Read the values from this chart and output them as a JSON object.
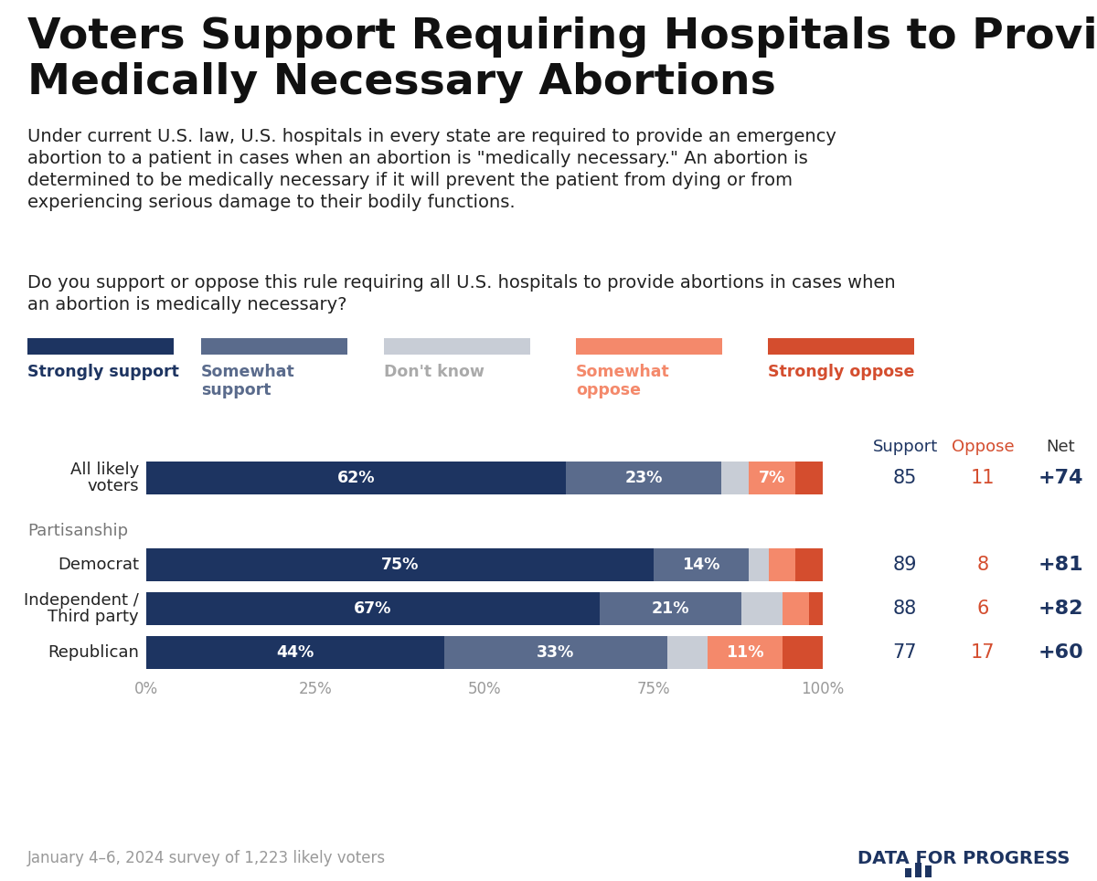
{
  "title": "Voters Support Requiring Hospitals to Provide\nMedically Necessary Abortions",
  "subtitle_lines": [
    "Under current U.S. law, U.S. hospitals in every state are required to provide an emergency",
    "abortion to a patient in cases when an abortion is \"medically necessary.\" An abortion is",
    "determined to be medically necessary if it will prevent the patient from dying or from",
    "experiencing serious damage to their bodily functions."
  ],
  "question_lines": [
    "Do you support or oppose this rule requiring all U.S. hospitals to provide abortions in cases when",
    "an abortion is medically necessary?"
  ],
  "legend_labels": [
    "Strongly support",
    "Somewhat\nsupport",
    "Don't know",
    "Somewhat\noppose",
    "Strongly oppose"
  ],
  "legend_colors": [
    "#1d3461",
    "#5a6b8c",
    "#c8cdd6",
    "#f4896b",
    "#d44d2e"
  ],
  "legend_text_colors": [
    "#1d3461",
    "#5a6b8c",
    "#aaaaaa",
    "#f4896b",
    "#d44d2e"
  ],
  "rows": [
    {
      "label": "All likely\nvoters",
      "values": [
        62,
        23,
        4,
        7,
        4
      ],
      "bar_label_indices": [
        0,
        1,
        -1,
        3,
        -1
      ],
      "bar_labels": [
        "62%",
        "23%",
        "",
        "7%",
        ""
      ],
      "support": "85",
      "oppose": "11",
      "net": "+74"
    },
    {
      "label": "Democrat",
      "values": [
        75,
        14,
        3,
        4,
        4
      ],
      "bar_labels": [
        "75%",
        "14%",
        "",
        "",
        ""
      ],
      "support": "89",
      "oppose": "8",
      "net": "+81"
    },
    {
      "label": "Independent /\nThird party",
      "values": [
        67,
        21,
        6,
        4,
        2
      ],
      "bar_labels": [
        "67%",
        "21%",
        "",
        "",
        ""
      ],
      "support": "88",
      "oppose": "6",
      "net": "+82"
    },
    {
      "label": "Republican",
      "values": [
        44,
        33,
        6,
        11,
        6
      ],
      "bar_labels": [
        "44%",
        "33%",
        "",
        "11%",
        ""
      ],
      "support": "77",
      "oppose": "17",
      "net": "+60"
    }
  ],
  "colors": [
    "#1d3461",
    "#5a6b8c",
    "#c8cdd6",
    "#f4896b",
    "#d44d2e"
  ],
  "partisanship_label": "Partisanship",
  "footer": "January 4–6, 2024 survey of 1,223 likely voters",
  "color_support": "#1d3461",
  "color_oppose": "#d44d2e",
  "color_net": "#1d3461",
  "background_color": "#ffffff"
}
